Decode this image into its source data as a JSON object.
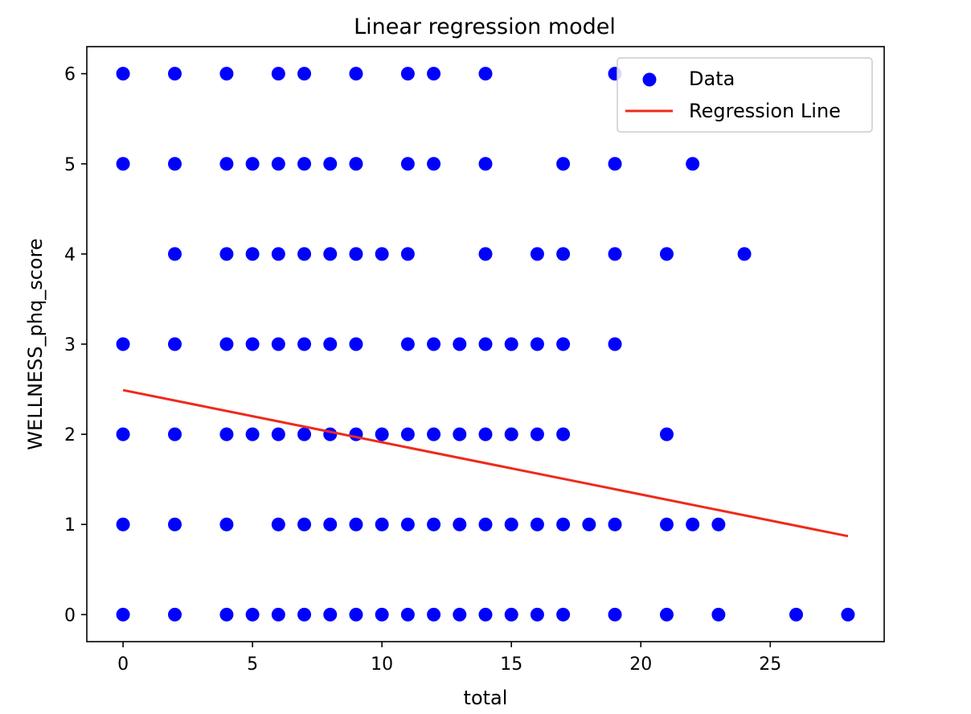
{
  "chart_data": {
    "type": "scatter",
    "title": "Linear regression model",
    "xlabel": "total",
    "ylabel": "WELLNESS_phq_score",
    "xlim": [
      -1.4,
      29.4
    ],
    "ylim": [
      -0.3,
      6.3
    ],
    "xticks": [
      0,
      5,
      10,
      15,
      20,
      25
    ],
    "yticks": [
      0,
      1,
      2,
      3,
      4,
      5,
      6
    ],
    "grid": false,
    "legend_position": "top-right",
    "series": [
      {
        "name": "Data",
        "kind": "scatter",
        "color": "#0000ff",
        "points": [
          [
            0,
            6
          ],
          [
            2,
            6
          ],
          [
            4,
            6
          ],
          [
            6,
            6
          ],
          [
            7,
            6
          ],
          [
            9,
            6
          ],
          [
            11,
            6
          ],
          [
            12,
            6
          ],
          [
            14,
            6
          ],
          [
            19,
            6
          ],
          [
            0,
            5
          ],
          [
            2,
            5
          ],
          [
            4,
            5
          ],
          [
            5,
            5
          ],
          [
            6,
            5
          ],
          [
            7,
            5
          ],
          [
            8,
            5
          ],
          [
            9,
            5
          ],
          [
            11,
            5
          ],
          [
            12,
            5
          ],
          [
            14,
            5
          ],
          [
            17,
            5
          ],
          [
            19,
            5
          ],
          [
            22,
            5
          ],
          [
            2,
            4
          ],
          [
            4,
            4
          ],
          [
            5,
            4
          ],
          [
            6,
            4
          ],
          [
            7,
            4
          ],
          [
            8,
            4
          ],
          [
            9,
            4
          ],
          [
            10,
            4
          ],
          [
            11,
            4
          ],
          [
            14,
            4
          ],
          [
            16,
            4
          ],
          [
            17,
            4
          ],
          [
            19,
            4
          ],
          [
            21,
            4
          ],
          [
            24,
            4
          ],
          [
            0,
            3
          ],
          [
            2,
            3
          ],
          [
            4,
            3
          ],
          [
            5,
            3
          ],
          [
            6,
            3
          ],
          [
            7,
            3
          ],
          [
            8,
            3
          ],
          [
            9,
            3
          ],
          [
            11,
            3
          ],
          [
            12,
            3
          ],
          [
            13,
            3
          ],
          [
            14,
            3
          ],
          [
            15,
            3
          ],
          [
            16,
            3
          ],
          [
            17,
            3
          ],
          [
            19,
            3
          ],
          [
            0,
            2
          ],
          [
            2,
            2
          ],
          [
            4,
            2
          ],
          [
            5,
            2
          ],
          [
            6,
            2
          ],
          [
            7,
            2
          ],
          [
            8,
            2
          ],
          [
            9,
            2
          ],
          [
            10,
            2
          ],
          [
            11,
            2
          ],
          [
            12,
            2
          ],
          [
            13,
            2
          ],
          [
            14,
            2
          ],
          [
            15,
            2
          ],
          [
            16,
            2
          ],
          [
            17,
            2
          ],
          [
            21,
            2
          ],
          [
            0,
            1
          ],
          [
            2,
            1
          ],
          [
            4,
            1
          ],
          [
            6,
            1
          ],
          [
            7,
            1
          ],
          [
            8,
            1
          ],
          [
            9,
            1
          ],
          [
            10,
            1
          ],
          [
            11,
            1
          ],
          [
            12,
            1
          ],
          [
            13,
            1
          ],
          [
            14,
            1
          ],
          [
            15,
            1
          ],
          [
            16,
            1
          ],
          [
            17,
            1
          ],
          [
            18,
            1
          ],
          [
            19,
            1
          ],
          [
            21,
            1
          ],
          [
            22,
            1
          ],
          [
            23,
            1
          ],
          [
            0,
            0
          ],
          [
            2,
            0
          ],
          [
            4,
            0
          ],
          [
            5,
            0
          ],
          [
            6,
            0
          ],
          [
            7,
            0
          ],
          [
            8,
            0
          ],
          [
            9,
            0
          ],
          [
            10,
            0
          ],
          [
            11,
            0
          ],
          [
            12,
            0
          ],
          [
            13,
            0
          ],
          [
            14,
            0
          ],
          [
            15,
            0
          ],
          [
            16,
            0
          ],
          [
            17,
            0
          ],
          [
            19,
            0
          ],
          [
            21,
            0
          ],
          [
            23,
            0
          ],
          [
            26,
            0
          ],
          [
            28,
            0
          ]
        ]
      },
      {
        "name": "Regression Line",
        "kind": "line",
        "color": "#ee2a1c",
        "points": [
          [
            0,
            2.49
          ],
          [
            28,
            0.87
          ]
        ]
      }
    ]
  }
}
